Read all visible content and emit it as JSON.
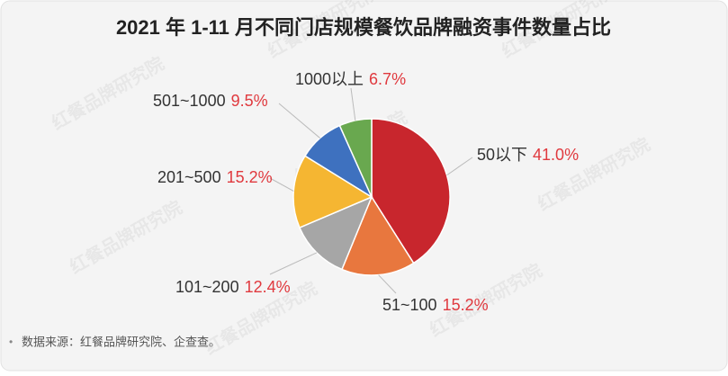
{
  "chart_data": {
    "type": "pie",
    "title": "2021 年 1-11 月不同门店规模餐饮品牌融资事件数量占比",
    "categories": [
      "50以下",
      "51~100",
      "101~200",
      "201~500",
      "501~1000",
      "1000以上"
    ],
    "values": [
      41.0,
      15.2,
      12.4,
      15.2,
      9.5,
      6.7
    ],
    "value_labels": [
      "41.0%",
      "15.2%",
      "12.4%",
      "15.2%",
      "9.5%",
      "6.7%"
    ],
    "colors": [
      "#c8262d",
      "#e8773e",
      "#a6a6a6",
      "#f5b632",
      "#3e71bf",
      "#69a84f"
    ],
    "source": "数据来源：红餐品牌研究院、企查查。",
    "watermark": "红餐品牌研究院"
  }
}
